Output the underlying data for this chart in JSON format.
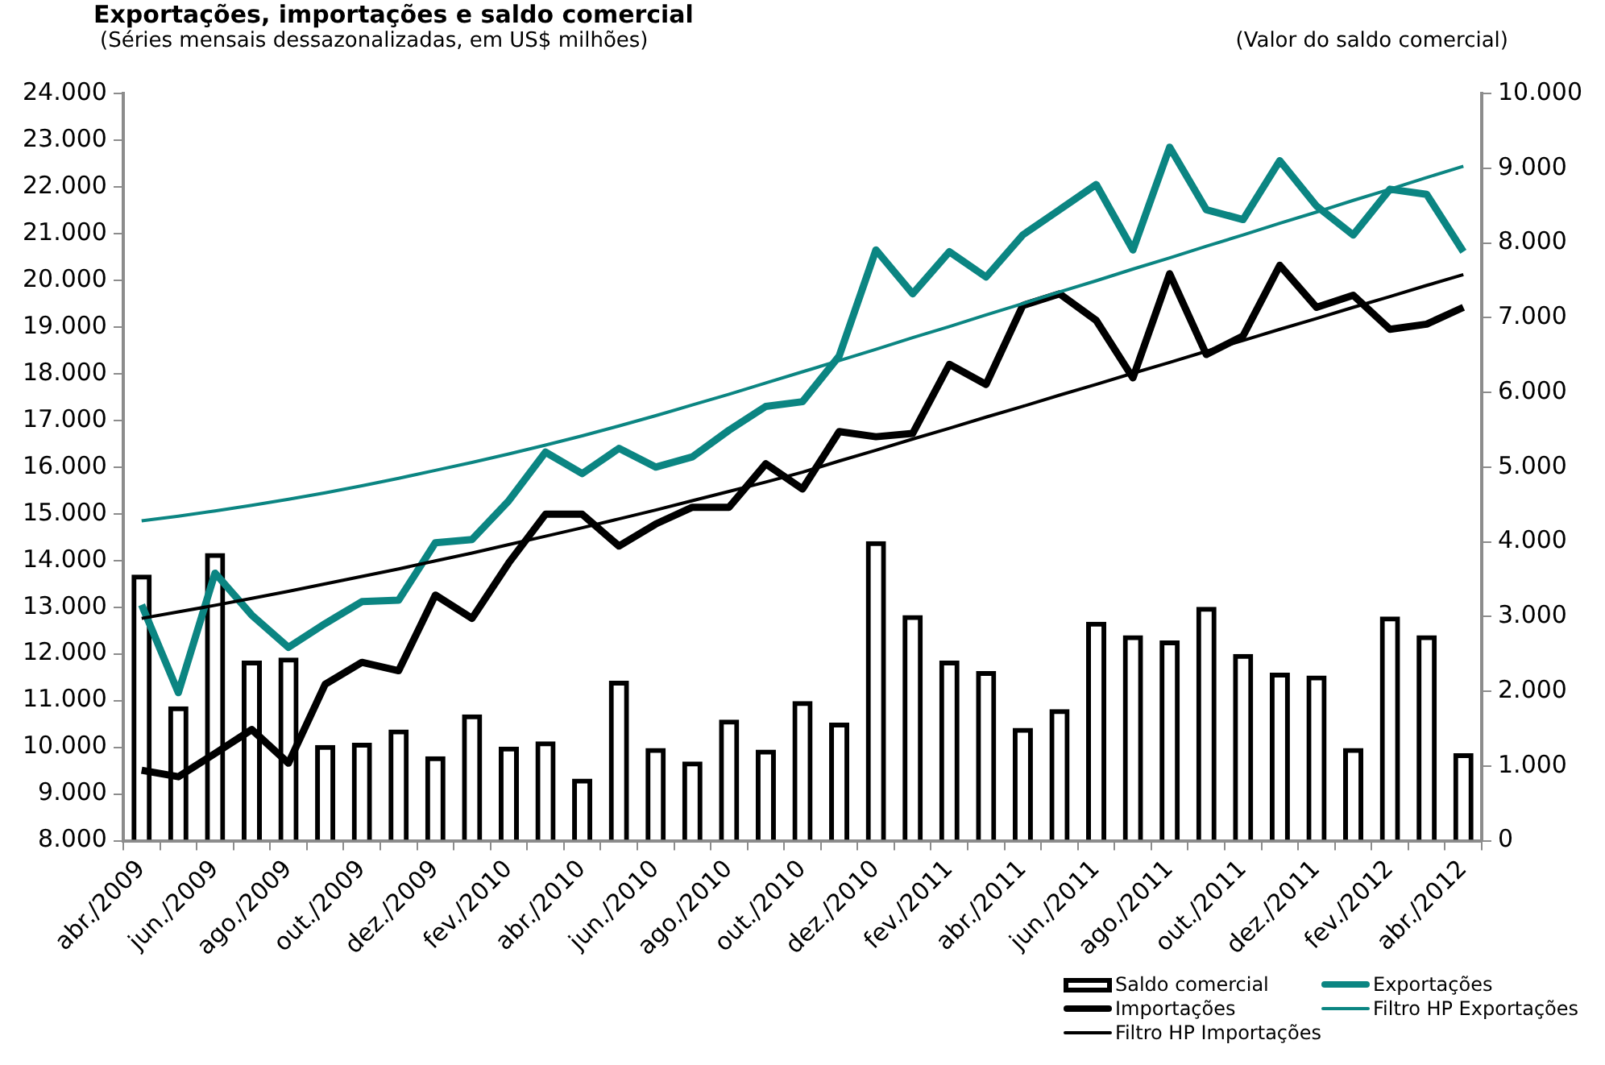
{
  "chart_data": {
    "type": "bar",
    "title": "Exportações, importações e saldo comercial",
    "subtitle": "(Séries mensais dessazonalizadas, em US$ milhões)",
    "y2label": "(Valor do saldo comercial)",
    "categories": [
      "abr./2009",
      null,
      "jun./2009",
      null,
      "ago./2009",
      null,
      "out./2009",
      null,
      "dez./2009",
      null,
      "fev./2010",
      null,
      "abr./2010",
      null,
      "jun./2010",
      null,
      "ago./2010",
      null,
      "out./2010",
      null,
      "dez./2010",
      null,
      "fev./2011",
      null,
      "abr./2011",
      null,
      "jun./2011",
      null,
      "ago./2011",
      null,
      "out./2011",
      null,
      "dez./2011",
      null,
      "fev./2012",
      null,
      "abr./2012"
    ],
    "series": [
      {
        "name": "Saldo comercial",
        "axis": "y2",
        "color": "#000000",
        "values": [
          3560,
          1800,
          3850,
          2410,
          2450,
          1280,
          1310,
          1490,
          1130,
          1690,
          1260,
          1330,
          830,
          2140,
          1240,
          1060,
          1620,
          1220,
          1870,
          1580,
          4010,
          3020,
          2410,
          2270,
          1510,
          1760,
          2930,
          2750,
          2680,
          3130,
          2500,
          2250,
          2210,
          1240,
          3000,
          2750,
          1170
        ]
      },
      {
        "name": "Exportações",
        "type": "line",
        "color": "#0b8582",
        "values": [
          13050,
          11170,
          13730,
          12830,
          12140,
          12650,
          13120,
          13150,
          14380,
          14450,
          15280,
          16320,
          15860,
          16400,
          16000,
          16220,
          16790,
          17300,
          17400,
          18380,
          20650,
          19710,
          20610,
          20070,
          20970,
          21510,
          22050,
          20650,
          22850,
          21510,
          21300,
          22560,
          21590,
          20970,
          21950,
          21840,
          20610
        ]
      },
      {
        "name": "Importações",
        "type": "line",
        "color": "#000000",
        "values": [
          9510,
          9370,
          9870,
          10380,
          9660,
          11350,
          11820,
          11640,
          13260,
          12760,
          13950,
          14990,
          14990,
          14310,
          14780,
          15140,
          15140,
          16070,
          15530,
          16760,
          16650,
          16720,
          18200,
          17770,
          19460,
          19710,
          19140,
          17910,
          20140,
          18410,
          18810,
          20320,
          19420,
          19680,
          18950,
          19060,
          19420
        ]
      },
      {
        "name": "Filtro HP Exportações",
        "type": "line",
        "color": "#0b8582",
        "values": [
          14850,
          14950,
          15060,
          15180,
          15310,
          15450,
          15600,
          15760,
          15930,
          16100,
          16280,
          16470,
          16670,
          16880,
          17100,
          17330,
          17560,
          17800,
          18040,
          18280,
          18520,
          18770,
          19010,
          19260,
          19500,
          19750,
          19990,
          20240,
          20480,
          20730,
          20970,
          21220,
          21460,
          21710,
          21950,
          22200,
          22440
        ]
      },
      {
        "name": "Filtro HP Importações",
        "type": "line",
        "color": "#000000",
        "values": [
          12760,
          12900,
          13040,
          13190,
          13340,
          13500,
          13660,
          13820,
          13990,
          14160,
          14340,
          14520,
          14700,
          14890,
          15080,
          15280,
          15480,
          15680,
          15890,
          16130,
          16360,
          16600,
          16830,
          17070,
          17300,
          17540,
          17770,
          18010,
          18240,
          18480,
          18710,
          18950,
          19180,
          19420,
          19650,
          19890,
          20120
        ]
      }
    ],
    "ylim": [
      8000,
      24000
    ],
    "yticks": [
      {
        "value": 8000,
        "label": "8.000"
      },
      {
        "value": 9000,
        "label": "9.000"
      },
      {
        "value": 10000,
        "label": "10.000"
      },
      {
        "value": 11000,
        "label": "11.000"
      },
      {
        "value": 12000,
        "label": "12.000"
      },
      {
        "value": 13000,
        "label": "13.000"
      },
      {
        "value": 14000,
        "label": "14.000"
      },
      {
        "value": 15000,
        "label": "15.000"
      },
      {
        "value": 16000,
        "label": "16.000"
      },
      {
        "value": 17000,
        "label": "17.000"
      },
      {
        "value": 18000,
        "label": "18.000"
      },
      {
        "value": 19000,
        "label": "19.000"
      },
      {
        "value": 20000,
        "label": "20.000"
      },
      {
        "value": 21000,
        "label": "21.000"
      },
      {
        "value": 22000,
        "label": "22.000"
      },
      {
        "value": 23000,
        "label": "23.000"
      },
      {
        "value": 24000,
        "label": "24.000"
      }
    ],
    "y2lim": [
      0,
      10000
    ],
    "y2ticks": [
      0,
      {
        "value": 1000,
        "label": "1.000"
      },
      {
        "value": 2000,
        "label": "2.000"
      },
      {
        "value": 3000,
        "label": "3.000"
      },
      {
        "value": 4000,
        "label": "4.000"
      },
      {
        "value": 5000,
        "label": "5.000"
      },
      {
        "value": 6000,
        "label": "6.000"
      },
      {
        "value": 7000,
        "label": "7.000"
      },
      {
        "value": 8000,
        "label": "8.000"
      },
      {
        "value": 9000,
        "label": "9.000"
      },
      {
        "value": 10000,
        "label": "10.000"
      }
    ],
    "grid": false,
    "legend": "bottom right",
    "marker": "none"
  }
}
